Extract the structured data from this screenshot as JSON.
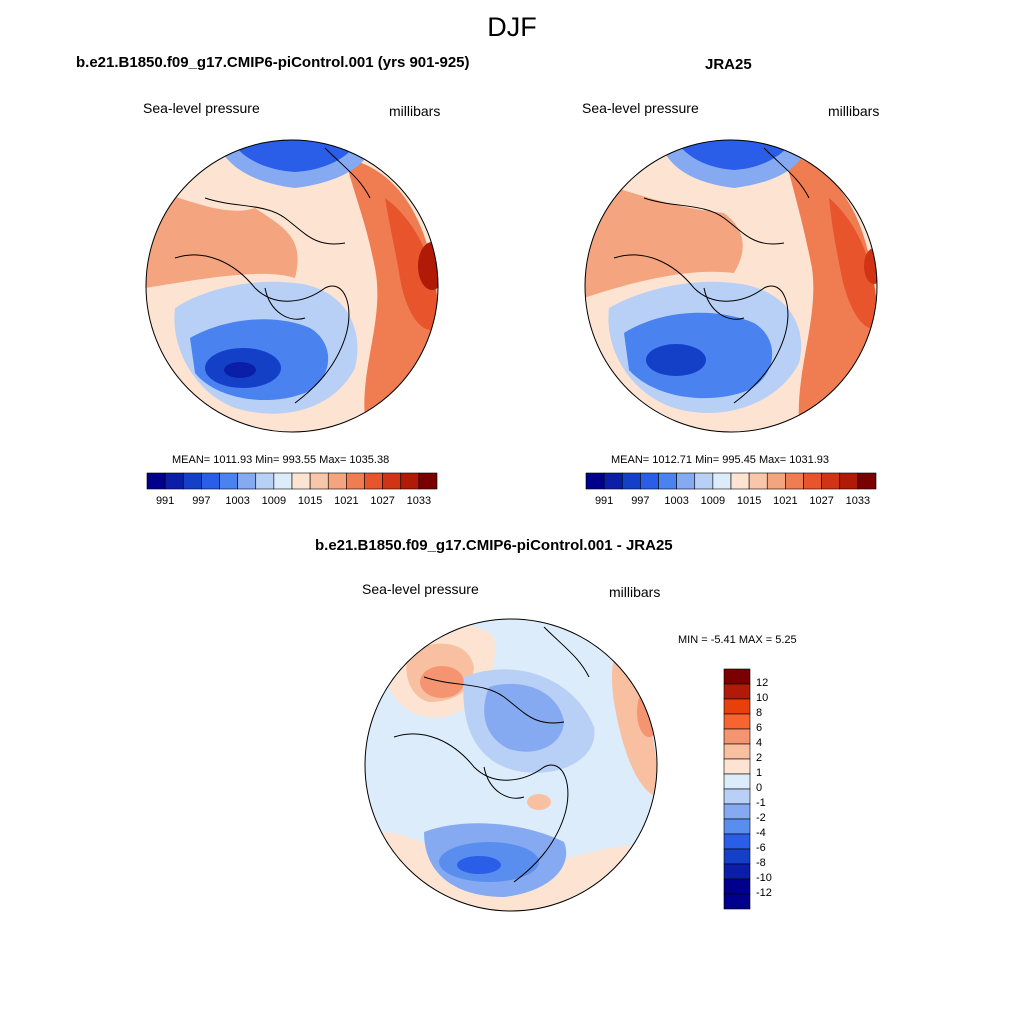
{
  "figure": {
    "title": "DJF"
  },
  "panels": [
    {
      "title": "b.e21.B1850.f09_g17.CMIP6-piControl.001 (yrs 901-925)",
      "left_label": "Sea-level pressure",
      "right_label": "millibars",
      "stats": "MEAN= 1011.93  Min= 993.55  Max= 1035.38"
    },
    {
      "title": "JRA25",
      "left_label": "Sea-level pressure",
      "right_label": "millibars",
      "stats": "MEAN= 1012.71  Min= 995.45  Max= 1031.93"
    },
    {
      "title": "b.e21.B1850.f09_g17.CMIP6-piControl.001 - JRA25",
      "left_label": "Sea-level pressure",
      "right_label": "millibars",
      "stats": "MIN =  -5.41 MAX =   5.25"
    }
  ],
  "colorbar_abs": {
    "colors": [
      "#00008c",
      "#0a1ea8",
      "#1440c8",
      "#2a5ee8",
      "#4a82f0",
      "#86aaf2",
      "#b8d0f5",
      "#dcecfb",
      "#fde4d2",
      "#f8c6a8",
      "#f4a47e",
      "#f07c52",
      "#e8542c",
      "#d03414",
      "#b01a06",
      "#7a0000"
    ],
    "labels": [
      "991",
      "997",
      "1003",
      "1009",
      "1015",
      "1021",
      "1027",
      "1033"
    ]
  },
  "colorbar_diff": {
    "colors": [
      "#7a0000",
      "#b01a06",
      "#e8400c",
      "#f86430",
      "#f49470",
      "#f8c0a0",
      "#fde4d2",
      "#dcecfb",
      "#b8d0f5",
      "#86aaf2",
      "#5a8eee",
      "#2a5ee8",
      "#1440c8",
      "#0a1ea8",
      "#00008c"
    ],
    "labels": [
      "12",
      "10",
      "8",
      "6",
      "4",
      "2",
      "1",
      "0",
      "-1",
      "-2",
      "-4",
      "-6",
      "-8",
      "-10",
      "-12"
    ]
  }
}
